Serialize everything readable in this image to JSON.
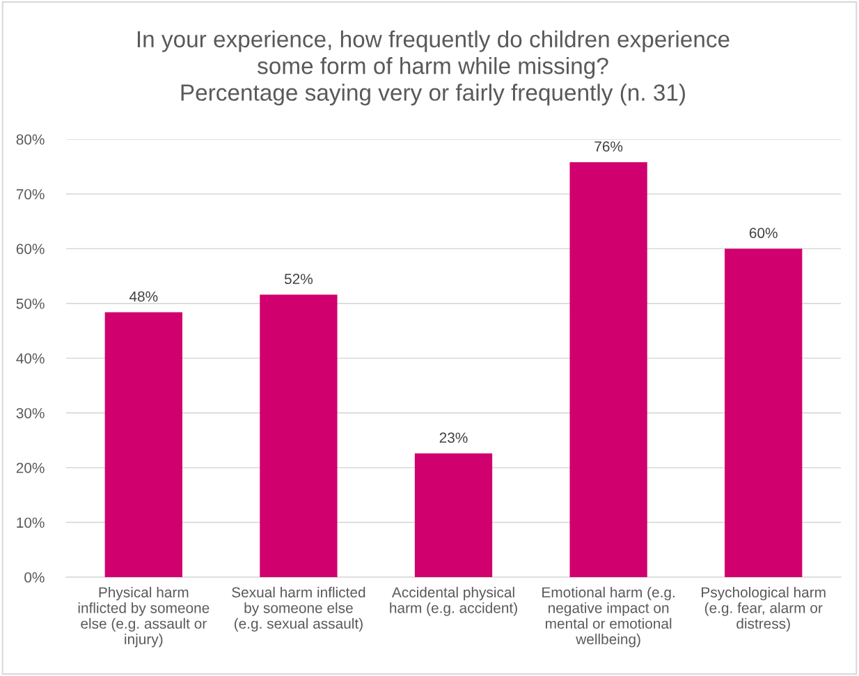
{
  "chart_data": {
    "type": "bar",
    "title": "In your experience, how frequently do children experience\nsome form of harm while missing?\nPercentage saying very or fairly frequently (n. 31)",
    "categories": [
      "Physical harm\ninflicted by someone\nelse (e.g. assault or\ninjury)",
      "Sexual harm inflicted\nby someone else\n(e.g. sexual assault)",
      "Accidental physical\nharm (e.g. accident)",
      "Emotional harm (e.g.\nnegative impact on\nmental or emotional\nwellbeing)",
      "Psychological harm\n(e.g. fear, alarm or\ndistress)"
    ],
    "values": [
      48.4,
      51.6,
      22.6,
      75.8,
      60.0
    ],
    "value_labels": [
      "48%",
      "52%",
      "23%",
      "76%",
      "60%"
    ],
    "color": "#d1006f",
    "ylim": [
      0,
      80
    ],
    "yticks": [
      {
        "value": 0,
        "label": "0%"
      },
      {
        "value": 10,
        "label": "10%"
      },
      {
        "value": 20,
        "label": "20%"
      },
      {
        "value": 30,
        "label": "30%"
      },
      {
        "value": 40,
        "label": "40%"
      },
      {
        "value": 50,
        "label": "50%"
      },
      {
        "value": 60,
        "label": "60%"
      },
      {
        "value": 70,
        "label": "70%"
      },
      {
        "value": 80,
        "label": "80%"
      }
    ],
    "grid": "y"
  }
}
